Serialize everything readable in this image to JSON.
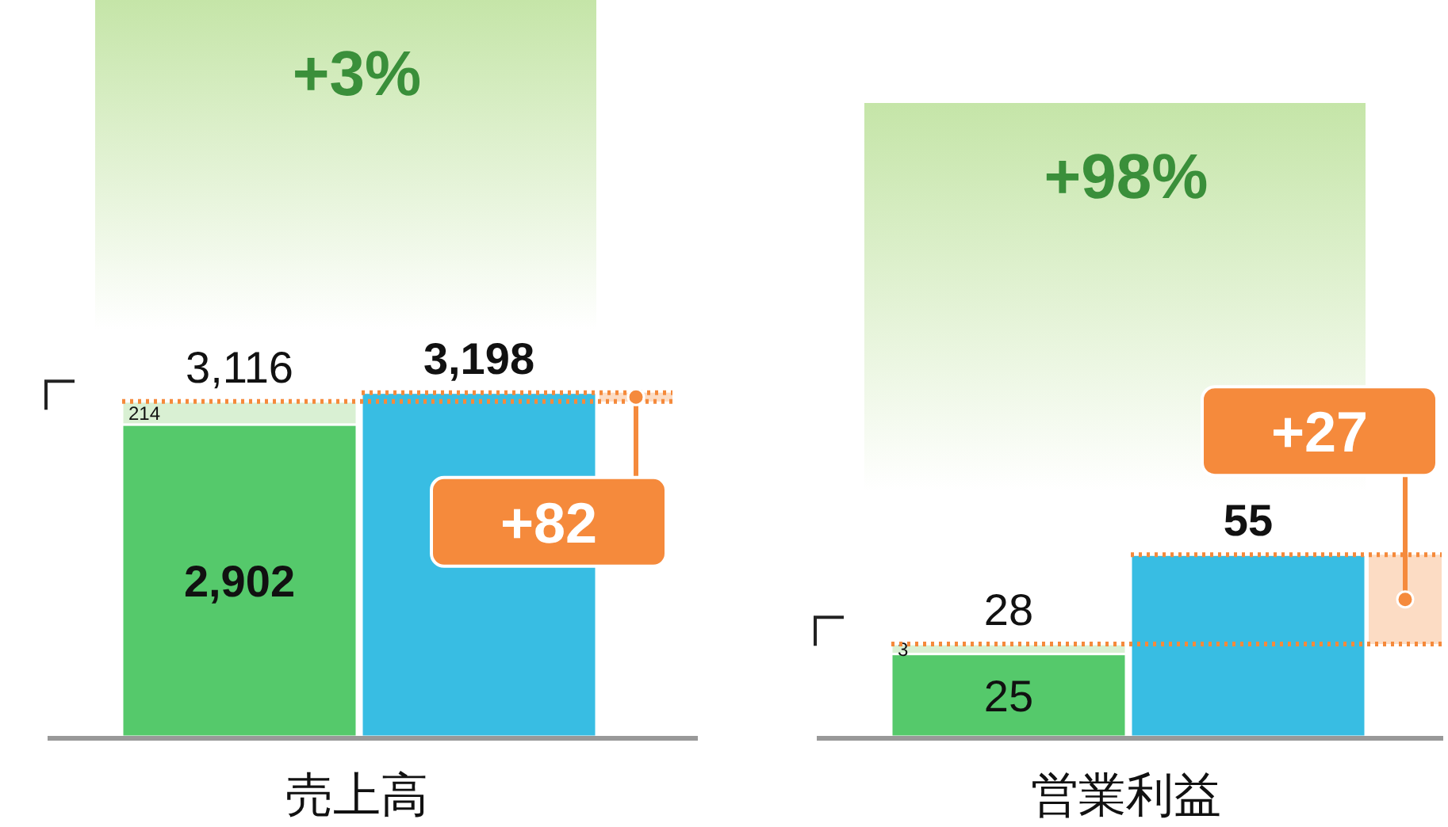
{
  "chart_data": [
    {
      "type": "bar",
      "stacked": true,
      "categories": [
        null,
        null
      ],
      "xlabel": "売上高",
      "series": [
        {
          "color": "#55c96b",
          "values": [
            2902,
            null
          ],
          "value_labels": [
            "2,902",
            null
          ]
        },
        {
          "color": "#d9f0d3",
          "values": [
            214,
            null
          ],
          "value_labels": [
            "214",
            null
          ]
        },
        {
          "color": "#38bde3",
          "values": [
            null,
            3198
          ],
          "value_labels": [
            null,
            null
          ]
        }
      ],
      "totals": [
        "3,116",
        "3,198"
      ],
      "bands": [
        {
          "axis": "y",
          "from": 3116,
          "to": 3198,
          "label": "+82",
          "color": "#f58a3c"
        }
      ],
      "ref_lines": [
        {
          "axis": "y",
          "value": 3116,
          "color": "#f58a3c",
          "line_style": "dotted"
        },
        {
          "axis": "y",
          "value": 3198,
          "color": "#f58a3c",
          "line_style": "dotted"
        }
      ],
      "annotations": [
        "+3%"
      ]
    },
    {
      "type": "bar",
      "stacked": true,
      "categories": [
        null,
        null
      ],
      "xlabel": "営業利益",
      "series": [
        {
          "color": "#55c96b",
          "values": [
            25,
            null
          ],
          "value_labels": [
            "25",
            null
          ]
        },
        {
          "color": "#d9f0d3",
          "values": [
            3,
            null
          ],
          "value_labels": [
            "3",
            null
          ]
        },
        {
          "color": "#38bde3",
          "values": [
            null,
            55
          ],
          "value_labels": [
            null,
            null
          ]
        }
      ],
      "totals": [
        "28",
        "55"
      ],
      "bands": [
        {
          "axis": "y",
          "from": 28,
          "to": 55,
          "label": "+27",
          "color": "#f58a3c"
        }
      ],
      "ref_lines": [
        {
          "axis": "y",
          "value": 28,
          "color": "#f58a3c",
          "line_style": "dotted"
        },
        {
          "axis": "y",
          "value": 55,
          "color": "#f58a3c",
          "line_style": "dotted"
        }
      ],
      "annotations": [
        "+98%"
      ]
    }
  ]
}
